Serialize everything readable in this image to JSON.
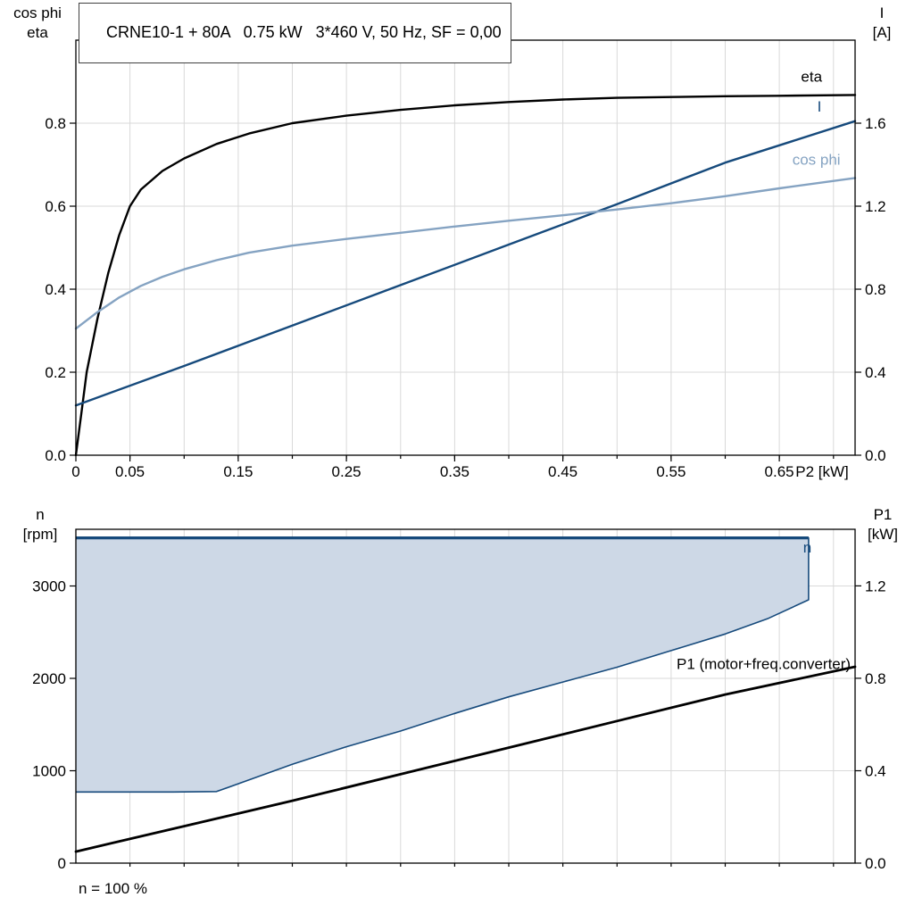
{
  "title": "CRNE10-1 + 80A   0.75 kW   3*460 V, 50 Hz, SF = 0,00",
  "footer_note": "n = 100 %",
  "colors": {
    "grid": "#d9d9d9",
    "frame": "#000000",
    "eta": "#000000",
    "current": "#164a7c",
    "cos_phi": "#85a3c2",
    "region_fill": "#cdd8e6",
    "region_stroke": "#164a7c",
    "p1": "#000000"
  },
  "chart_data": [
    {
      "type": "line",
      "x": {
        "label": "P2 [kW]",
        "lim": [
          0,
          0.72
        ],
        "grid_step": 0.05,
        "ticks": [
          {
            "v": 0,
            "t": "0"
          },
          {
            "v": 0.05,
            "t": "0.05"
          },
          {
            "v": 0.15,
            "t": "0.15"
          },
          {
            "v": 0.25,
            "t": "0.25"
          },
          {
            "v": 0.35,
            "t": "0.35"
          },
          {
            "v": 0.45,
            "t": "0.45"
          },
          {
            "v": 0.55,
            "t": "0.55"
          },
          {
            "v": 0.65,
            "t": "0.65"
          }
        ]
      },
      "left_axis": {
        "title_lines": [
          "cos phi",
          "eta"
        ],
        "lim": [
          0,
          1.0
        ],
        "ticks": [
          {
            "v": 0,
            "t": "0.0"
          },
          {
            "v": 0.2,
            "t": "0.2"
          },
          {
            "v": 0.4,
            "t": "0.4"
          },
          {
            "v": 0.6,
            "t": "0.6"
          },
          {
            "v": 0.8,
            "t": "0.8"
          }
        ]
      },
      "right_axis": {
        "title_lines": [
          "I",
          "[A]"
        ],
        "lim": [
          0,
          2.0
        ],
        "ticks": [
          {
            "v": 0,
            "t": "0.0"
          },
          {
            "v": 0.4,
            "t": "0.4"
          },
          {
            "v": 0.8,
            "t": "0.8"
          },
          {
            "v": 1.2,
            "t": "1.2"
          },
          {
            "v": 1.6,
            "t": "1.6"
          }
        ]
      },
      "series": [
        {
          "id": "eta",
          "name": "eta",
          "axis": "left",
          "color": "#000000",
          "width": 2.4,
          "points": [
            [
              0,
              0
            ],
            [
              0.005,
              0.1
            ],
            [
              0.01,
              0.2
            ],
            [
              0.02,
              0.33
            ],
            [
              0.03,
              0.44
            ],
            [
              0.04,
              0.53
            ],
            [
              0.05,
              0.6
            ],
            [
              0.06,
              0.64
            ],
            [
              0.08,
              0.685
            ],
            [
              0.1,
              0.715
            ],
            [
              0.13,
              0.75
            ],
            [
              0.16,
              0.775
            ],
            [
              0.2,
              0.8
            ],
            [
              0.25,
              0.818
            ],
            [
              0.3,
              0.832
            ],
            [
              0.35,
              0.843
            ],
            [
              0.4,
              0.851
            ],
            [
              0.45,
              0.857
            ],
            [
              0.5,
              0.861
            ],
            [
              0.55,
              0.863
            ],
            [
              0.6,
              0.865
            ],
            [
              0.65,
              0.866
            ],
            [
              0.72,
              0.868
            ]
          ]
        },
        {
          "id": "current",
          "name": "I",
          "axis": "right",
          "color": "#164a7c",
          "width": 2.4,
          "points": [
            [
              0,
              0.24
            ],
            [
              0.1,
              0.43
            ],
            [
              0.2,
              0.625
            ],
            [
              0.3,
              0.82
            ],
            [
              0.4,
              1.015
            ],
            [
              0.5,
              1.21
            ],
            [
              0.6,
              1.41
            ],
            [
              0.72,
              1.61
            ]
          ]
        },
        {
          "id": "cos-phi",
          "name": "cos phi",
          "axis": "left",
          "color": "#85a3c2",
          "width": 2.4,
          "points": [
            [
              0,
              0.305
            ],
            [
              0.02,
              0.345
            ],
            [
              0.04,
              0.38
            ],
            [
              0.06,
              0.408
            ],
            [
              0.08,
              0.43
            ],
            [
              0.1,
              0.448
            ],
            [
              0.13,
              0.47
            ],
            [
              0.16,
              0.488
            ],
            [
              0.2,
              0.505
            ],
            [
              0.25,
              0.521
            ],
            [
              0.3,
              0.536
            ],
            [
              0.35,
              0.551
            ],
            [
              0.4,
              0.565
            ],
            [
              0.45,
              0.578
            ],
            [
              0.5,
              0.592
            ],
            [
              0.55,
              0.607
            ],
            [
              0.6,
              0.624
            ],
            [
              0.65,
              0.643
            ],
            [
              0.72,
              0.668
            ]
          ]
        }
      ],
      "labels": [
        {
          "id": "eta",
          "text": "eta",
          "x": 0.67,
          "v": 0.9,
          "axis": "left",
          "color": "#000000",
          "anchor": "start"
        },
        {
          "id": "current",
          "text": "I",
          "x": 0.685,
          "v": 0.828,
          "axis": "left",
          "color": "#164a7c",
          "anchor": "start"
        },
        {
          "id": "cos-phi",
          "text": "cos phi",
          "x": 0.662,
          "v": 0.7,
          "axis": "left",
          "color": "#85a3c2",
          "anchor": "start"
        }
      ]
    },
    {
      "type": "line-area",
      "x": {
        "label": "",
        "lim": [
          0,
          0.72
        ],
        "grid_step": 0.05,
        "ticks": []
      },
      "left_axis": {
        "title_lines": [
          "n",
          "[rpm]"
        ],
        "lim": [
          0,
          3613
        ],
        "ticks": [
          {
            "v": 0,
            "t": "0"
          },
          {
            "v": 1000,
            "t": "1000"
          },
          {
            "v": 2000,
            "t": "2000"
          },
          {
            "v": 3000,
            "t": "3000"
          }
        ]
      },
      "right_axis": {
        "title_lines": [
          "P1",
          "[kW]"
        ],
        "lim": [
          0,
          1.445
        ],
        "ticks": [
          {
            "v": 0,
            "t": "0.0"
          },
          {
            "v": 0.4,
            "t": "0.4"
          },
          {
            "v": 0.8,
            "t": "0.8"
          },
          {
            "v": 1.2,
            "t": "1.2"
          }
        ]
      },
      "region": {
        "id": "n-envelope",
        "name": "n",
        "fill": "#cdd8e6",
        "stroke": "#164a7c",
        "points": [
          [
            0,
            3520
          ],
          [
            0.677,
            3520
          ],
          [
            0.677,
            2850
          ],
          [
            0.64,
            2650
          ],
          [
            0.6,
            2480
          ],
          [
            0.55,
            2300
          ],
          [
            0.5,
            2120
          ],
          [
            0.45,
            1960
          ],
          [
            0.4,
            1800
          ],
          [
            0.35,
            1620
          ],
          [
            0.3,
            1430
          ],
          [
            0.25,
            1260
          ],
          [
            0.2,
            1070
          ],
          [
            0.16,
            900
          ],
          [
            0.13,
            775
          ],
          [
            0.09,
            770
          ],
          [
            0,
            770
          ]
        ]
      },
      "series": [
        {
          "id": "p1",
          "name": "P1 (motor+freq.converter)",
          "axis": "right",
          "color": "#000000",
          "width": 2.8,
          "points": [
            [
              0,
              0.05
            ],
            [
              0.1,
              0.16
            ],
            [
              0.2,
              0.27
            ],
            [
              0.3,
              0.385
            ],
            [
              0.4,
              0.5
            ],
            [
              0.5,
              0.615
            ],
            [
              0.6,
              0.73
            ],
            [
              0.72,
              0.85
            ]
          ]
        }
      ],
      "labels": [
        {
          "id": "n",
          "text": "n",
          "x": 0.672,
          "v": 3360,
          "axis": "left",
          "color": "#164a7c",
          "anchor": "start"
        },
        {
          "id": "p1",
          "text": "P1 (motor+freq.converter)",
          "x": 0.716,
          "v": 0.84,
          "axis": "right",
          "color": "#000000",
          "anchor": "end"
        }
      ]
    }
  ]
}
